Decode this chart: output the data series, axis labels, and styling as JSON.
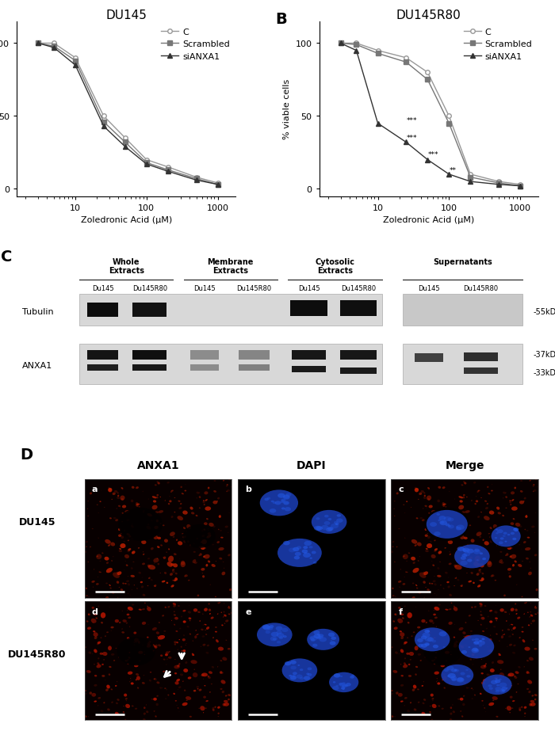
{
  "panel_A_title": "DU145",
  "panel_B_title": "DU145R80",
  "xlabel": "Zoledronic Acid (μM)",
  "ylabel": "% viable cells",
  "xA": [
    3,
    5,
    10,
    25,
    50,
    100,
    200,
    500,
    1000
  ],
  "A_C": [
    100,
    100,
    90,
    50,
    35,
    20,
    15,
    8,
    4
  ],
  "A_Scrambled": [
    100,
    98,
    88,
    46,
    32,
    18,
    13,
    7,
    3
  ],
  "A_siANXA1": [
    100,
    97,
    85,
    43,
    29,
    17,
    12,
    6,
    3
  ],
  "xB": [
    3,
    5,
    10,
    25,
    50,
    100,
    200,
    500,
    1000
  ],
  "B_C": [
    100,
    100,
    95,
    90,
    80,
    50,
    10,
    5,
    3
  ],
  "B_Scrambled": [
    100,
    99,
    93,
    87,
    75,
    45,
    8,
    4,
    2
  ],
  "B_siANXA1": [
    100,
    95,
    45,
    32,
    20,
    10,
    5,
    3,
    2
  ],
  "star_positions_B": [
    [
      25,
      47,
      "***"
    ],
    [
      25,
      35,
      "***"
    ],
    [
      50,
      24,
      "***"
    ],
    [
      100,
      13,
      "**"
    ]
  ],
  "panel_label_fontsize": 14,
  "title_fontsize": 11,
  "axis_fontsize": 8,
  "tick_fontsize": 8,
  "legend_fontsize": 8,
  "C_panel_labels": [
    "Whole\nExtracts",
    "Membrane\nExtracts",
    "Cytosolic\nExtracts",
    "Supernatants"
  ],
  "C_row_labels": [
    "Tubulin",
    "ANXA1"
  ],
  "D_col_labels": [
    "ANXA1",
    "DAPI",
    "Merge"
  ],
  "D_row_labels": [
    "DU145",
    "DU145R80"
  ],
  "D_sub_labels": [
    "a",
    "b",
    "c",
    "d",
    "e",
    "f"
  ],
  "bg_color": "#ffffff"
}
